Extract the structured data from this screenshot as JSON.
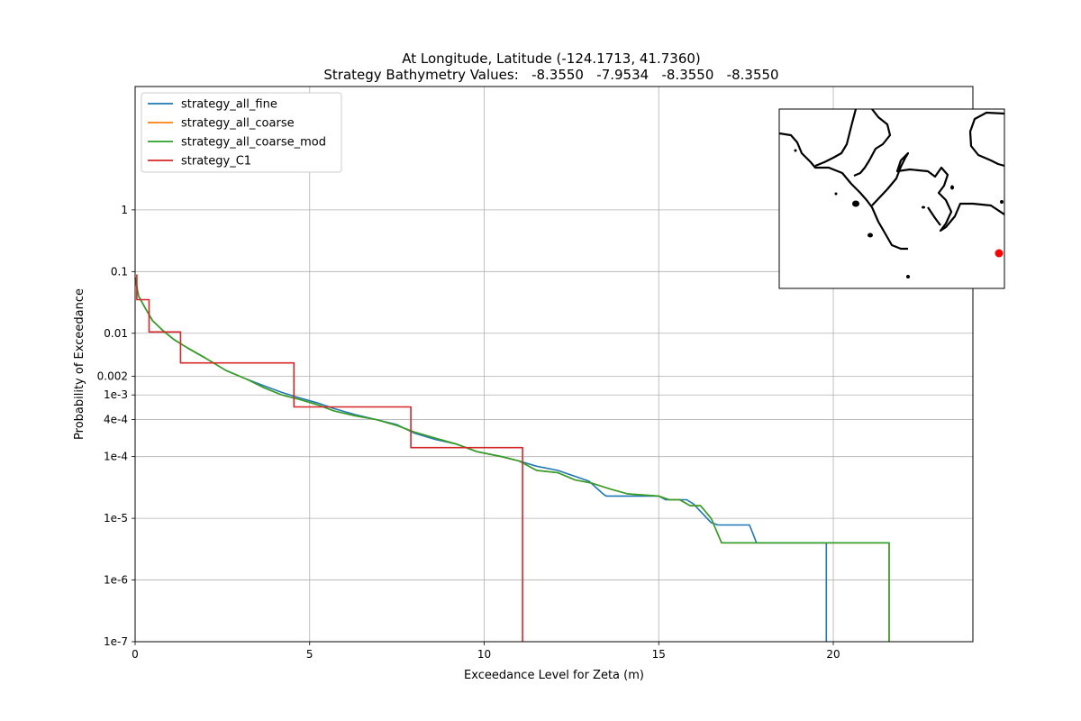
{
  "chart_data": {
    "type": "line",
    "title": "At Longitude, Latitude (-124.1713,  41.7360)",
    "subtitle": "Strategy Bathymetry Values:   -8.3550   -7.9534   -8.3550   -8.3550",
    "xlabel": "Exceedance Level for Zeta (m)",
    "ylabel": "Probability of Exceedance",
    "xlim": [
      0,
      24
    ],
    "ylim_log10": [
      -7,
      2
    ],
    "y_scale": "log",
    "grid": true,
    "legend_position": "top-left",
    "x_ticks": [
      {
        "value": 0,
        "label": "0"
      },
      {
        "value": 5,
        "label": "5"
      },
      {
        "value": 10,
        "label": "10"
      },
      {
        "value": 15,
        "label": "15"
      },
      {
        "value": 20,
        "label": "20"
      }
    ],
    "y_ticks": [
      {
        "value": 1,
        "label": "1"
      },
      {
        "value": 0.1,
        "label": "0.1"
      },
      {
        "value": 0.01,
        "label": "0.01"
      },
      {
        "value": 0.002,
        "label": "0.002"
      },
      {
        "value": 0.001,
        "label": "1e-3"
      },
      {
        "value": 0.0004,
        "label": "4e-4"
      },
      {
        "value": 0.0001,
        "label": "1e-4"
      },
      {
        "value": 1e-05,
        "label": "1e-5"
      },
      {
        "value": 1e-06,
        "label": "1e-6"
      },
      {
        "value": 1e-07,
        "label": "1e-7"
      }
    ],
    "series": [
      {
        "name": "strategy_all_fine",
        "color": "#1f77b4",
        "points": [
          [
            0,
            0.08
          ],
          [
            0.1,
            0.04
          ],
          [
            0.3,
            0.025
          ],
          [
            0.5,
            0.016
          ],
          [
            0.8,
            0.011
          ],
          [
            1.1,
            0.008
          ],
          [
            1.5,
            0.0058
          ],
          [
            2.0,
            0.004
          ],
          [
            2.6,
            0.0025
          ],
          [
            3.2,
            0.0018
          ],
          [
            3.7,
            0.0014
          ],
          [
            4.2,
            0.0011
          ],
          [
            4.7,
            0.0009
          ],
          [
            5.2,
            0.00075
          ],
          [
            5.7,
            0.0006
          ],
          [
            6.3,
            0.00048
          ],
          [
            6.9,
            0.0004
          ],
          [
            7.5,
            0.00033
          ],
          [
            8.0,
            0.00024
          ],
          [
            8.6,
            0.00019
          ],
          [
            9.2,
            0.00016
          ],
          [
            9.8,
            0.00012
          ],
          [
            10.5,
            0.0001
          ],
          [
            11.0,
            8.5e-05
          ],
          [
            11.5,
            7e-05
          ],
          [
            12.1,
            6e-05
          ],
          [
            12.6,
            4.8e-05
          ],
          [
            13.0,
            4e-05
          ],
          [
            13.4,
            2.5e-05
          ],
          [
            13.5,
            2.3e-05
          ],
          [
            15.0,
            2.3e-05
          ],
          [
            15.2,
            2e-05
          ],
          [
            15.8,
            2e-05
          ],
          [
            16.0,
            1.7e-05
          ],
          [
            16.5,
            8.5e-06
          ],
          [
            16.7,
            7.8e-06
          ],
          [
            17.6,
            7.8e-06
          ],
          [
            17.8,
            4e-06
          ],
          [
            19.8,
            4e-06
          ],
          [
            19.8,
            1e-07
          ]
        ]
      },
      {
        "name": "strategy_all_coarse",
        "color": "#ff7f0e",
        "points": [
          [
            0,
            0.08
          ],
          [
            0.1,
            0.04
          ],
          [
            0.3,
            0.025
          ],
          [
            0.5,
            0.016
          ],
          [
            0.8,
            0.011
          ],
          [
            1.1,
            0.008
          ],
          [
            1.5,
            0.0058
          ],
          [
            2.0,
            0.004
          ],
          [
            2.6,
            0.0025
          ],
          [
            3.2,
            0.0018
          ],
          [
            3.7,
            0.0013
          ],
          [
            4.2,
            0.001
          ],
          [
            4.7,
            0.00085
          ],
          [
            5.2,
            0.0007
          ],
          [
            5.7,
            0.00055
          ],
          [
            6.3,
            0.00046
          ],
          [
            6.9,
            0.0004
          ],
          [
            7.5,
            0.00032
          ],
          [
            8.0,
            0.00025
          ],
          [
            8.6,
            0.0002
          ],
          [
            9.2,
            0.00016
          ],
          [
            9.8,
            0.00012
          ],
          [
            10.5,
            0.0001
          ],
          [
            11.0,
            8.5e-05
          ],
          [
            11.5,
            6e-05
          ],
          [
            12.1,
            5.5e-05
          ],
          [
            12.6,
            4.2e-05
          ],
          [
            13.1,
            3.7e-05
          ],
          [
            13.6,
            3e-05
          ],
          [
            14.1,
            2.5e-05
          ],
          [
            15.0,
            2.3e-05
          ],
          [
            15.3,
            2e-05
          ],
          [
            15.6,
            2e-05
          ],
          [
            15.9,
            1.6e-05
          ],
          [
            16.2,
            1.6e-05
          ],
          [
            16.5,
            1e-05
          ],
          [
            16.8,
            4e-06
          ],
          [
            21.6,
            4e-06
          ],
          [
            21.6,
            1e-07
          ]
        ]
      },
      {
        "name": "strategy_all_coarse_mod",
        "color": "#2ca02c",
        "points": [
          [
            0,
            0.08
          ],
          [
            0.1,
            0.04
          ],
          [
            0.3,
            0.025
          ],
          [
            0.5,
            0.016
          ],
          [
            0.8,
            0.011
          ],
          [
            1.1,
            0.008
          ],
          [
            1.5,
            0.0058
          ],
          [
            2.0,
            0.004
          ],
          [
            2.6,
            0.0025
          ],
          [
            3.2,
            0.0018
          ],
          [
            3.7,
            0.0013
          ],
          [
            4.2,
            0.001
          ],
          [
            4.7,
            0.00085
          ],
          [
            5.2,
            0.0007
          ],
          [
            5.7,
            0.00055
          ],
          [
            6.3,
            0.00046
          ],
          [
            6.9,
            0.0004
          ],
          [
            7.5,
            0.00032
          ],
          [
            8.0,
            0.00025
          ],
          [
            8.6,
            0.0002
          ],
          [
            9.2,
            0.00016
          ],
          [
            9.8,
            0.00012
          ],
          [
            10.5,
            0.0001
          ],
          [
            11.0,
            8.5e-05
          ],
          [
            11.5,
            6e-05
          ],
          [
            12.1,
            5.5e-05
          ],
          [
            12.6,
            4.2e-05
          ],
          [
            13.1,
            3.7e-05
          ],
          [
            13.6,
            3e-05
          ],
          [
            14.1,
            2.5e-05
          ],
          [
            15.0,
            2.3e-05
          ],
          [
            15.3,
            2e-05
          ],
          [
            15.6,
            2e-05
          ],
          [
            15.9,
            1.6e-05
          ],
          [
            16.2,
            1.6e-05
          ],
          [
            16.5,
            1e-05
          ],
          [
            16.8,
            4e-06
          ],
          [
            21.6,
            4e-06
          ],
          [
            21.6,
            1e-07
          ]
        ]
      },
      {
        "name": "strategy_C1",
        "color": "#d62728",
        "points": [
          [
            0.05,
            0.09
          ],
          [
            0.05,
            0.035
          ],
          [
            0.4,
            0.035
          ],
          [
            0.4,
            0.0105
          ],
          [
            1.3,
            0.0105
          ],
          [
            1.3,
            0.0033
          ],
          [
            4.55,
            0.0033
          ],
          [
            4.55,
            0.00064
          ],
          [
            7.9,
            0.00064
          ],
          [
            7.9,
            0.00014
          ],
          [
            11.1,
            0.00014
          ],
          [
            11.1,
            1e-07
          ]
        ]
      }
    ]
  },
  "inset_map": {
    "marker_color": "#ff0000"
  }
}
